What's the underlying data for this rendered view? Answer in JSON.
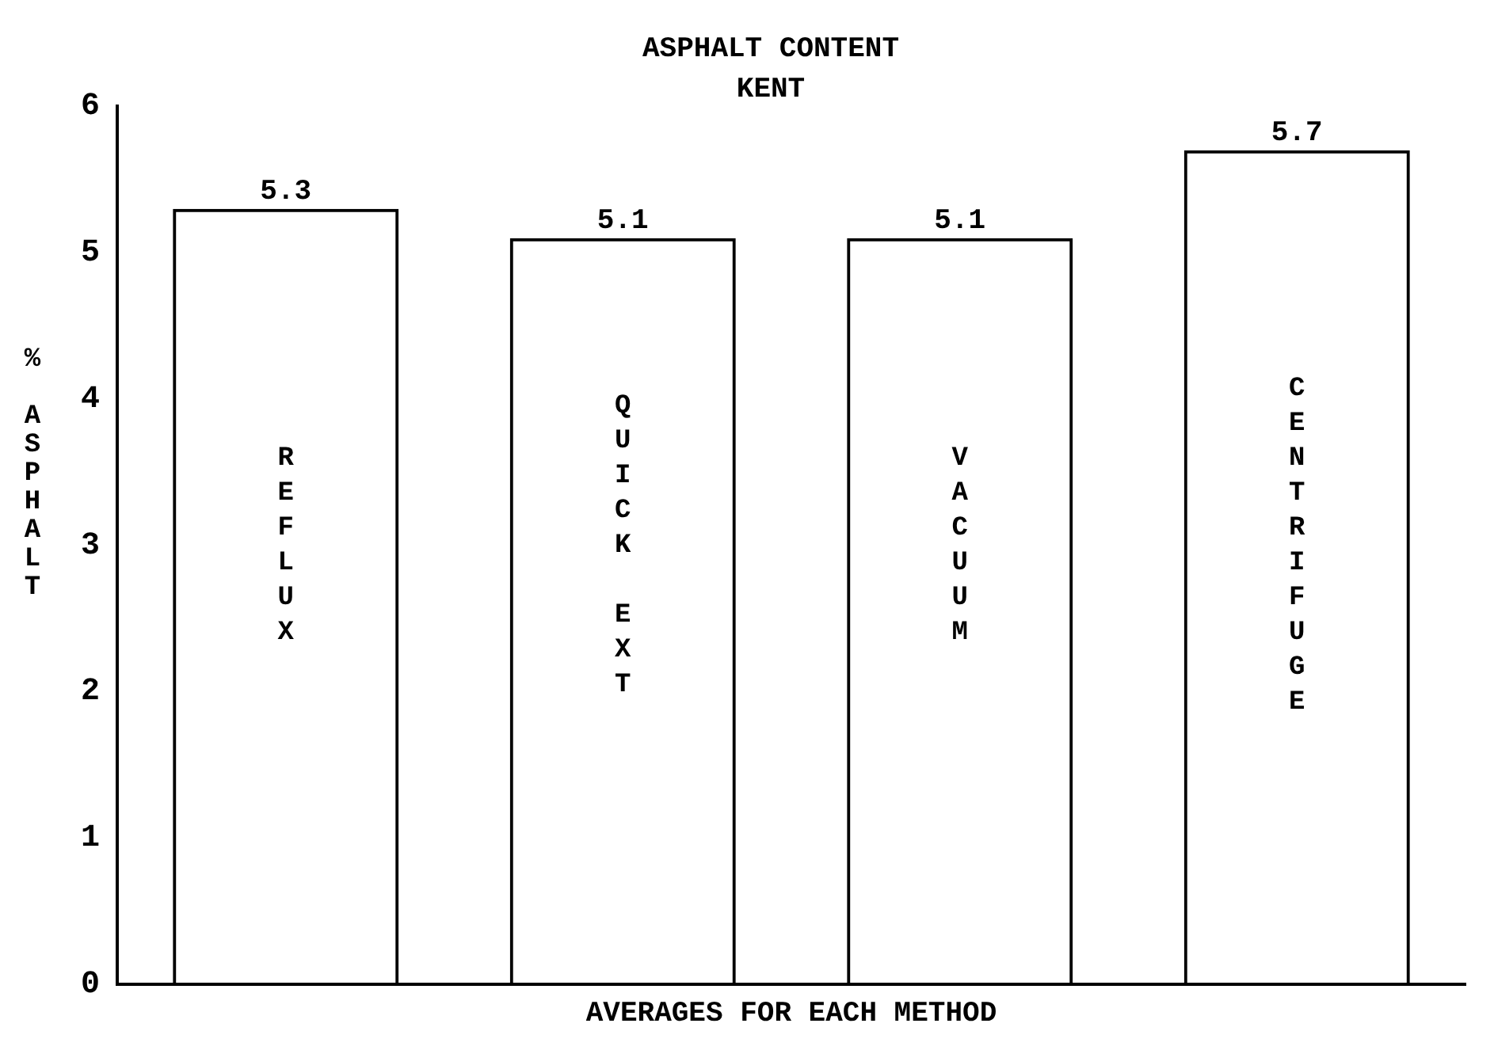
{
  "chart_data": {
    "type": "bar",
    "title": "ASPHALT CONTENT",
    "subtitle": "KENT",
    "xlabel": "AVERAGES FOR EACH METHOD",
    "ylabel": "% ASPHALT",
    "categories": [
      "REFLUX",
      "QUICK EXT",
      "VACUUM",
      "CENTRIFUGE"
    ],
    "values": [
      5.3,
      5.1,
      5.1,
      5.7
    ],
    "color": "#000000",
    "data_labels": true,
    "ylim": [
      0,
      6
    ],
    "yticks": [
      0,
      1,
      2,
      3,
      4,
      5,
      6
    ],
    "grid": false,
    "legend": false
  }
}
